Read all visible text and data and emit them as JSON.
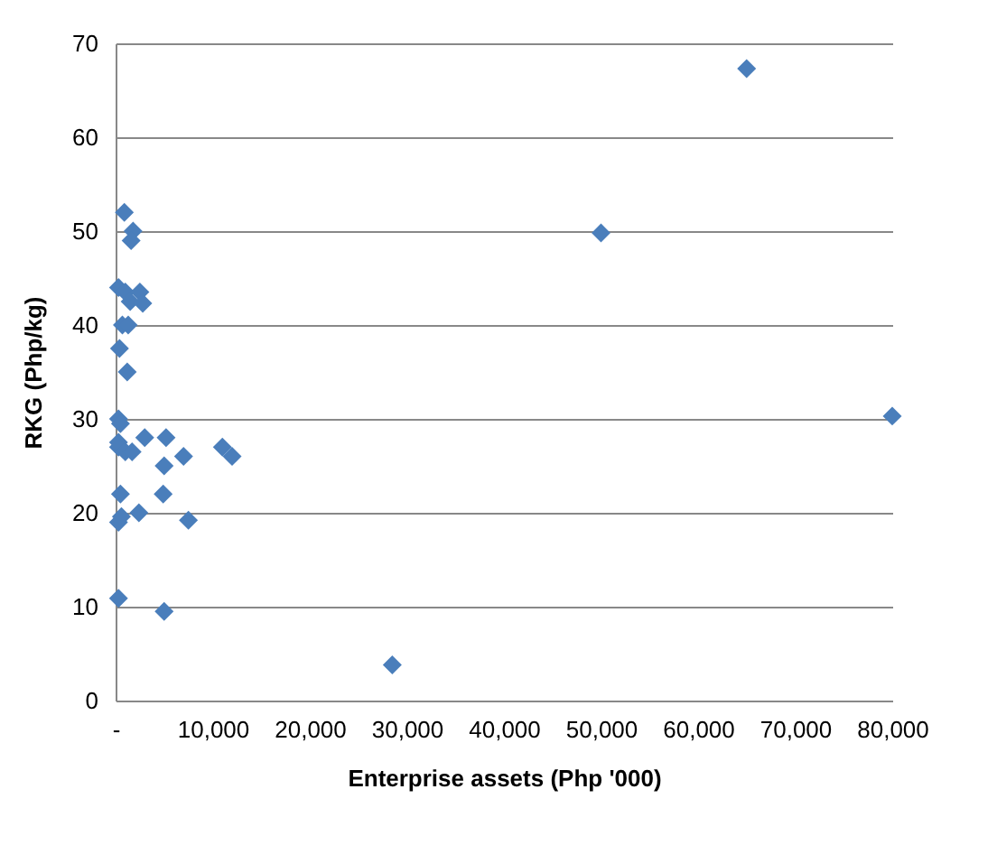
{
  "chart_data": {
    "type": "scatter",
    "xlabel": "Enterprise assets (Php '000)",
    "ylabel": "RKG (Php/kg)",
    "marker": "diamond",
    "grid": "y",
    "series": [
      {
        "color": "#4a7ebb",
        "x": [
          300,
          5000,
          28500,
          50000,
          65000,
          80000,
          900,
          1800,
          1600,
          300,
          1000,
          1500,
          2500,
          2800,
          700,
          1300,
          400,
          1200,
          300,
          500,
          300,
          300,
          1000,
          1700,
          3000,
          5000,
          5200,
          7000,
          11000,
          12000,
          500,
          4900,
          300,
          600,
          2400,
          7500
        ],
        "values": [
          10.9,
          9.5,
          3.8,
          49.8,
          67.3,
          30.3,
          52,
          50,
          49,
          44,
          43.5,
          42.5,
          43.5,
          42.3,
          40,
          40,
          37.5,
          35,
          30,
          29.5,
          27.5,
          27,
          26.5,
          26.5,
          28,
          25,
          28,
          26,
          27,
          26,
          22,
          22,
          19,
          19.6,
          20,
          19.2
        ]
      }
    ],
    "xlim": [
      0,
      80000
    ],
    "xticks": [
      {
        "value": 0,
        "label": "-"
      },
      {
        "value": 10000,
        "label": "10,000"
      },
      {
        "value": 20000,
        "label": "20,000"
      },
      {
        "value": 30000,
        "label": "30,000"
      },
      {
        "value": 40000,
        "label": "40,000"
      },
      {
        "value": 50000,
        "label": "50,000"
      },
      {
        "value": 60000,
        "label": "60,000"
      },
      {
        "value": 70000,
        "label": "70,000"
      },
      {
        "value": 80000,
        "label": "80,000"
      }
    ],
    "ylim": [
      0,
      70
    ],
    "yticks": [
      0,
      10,
      20,
      30,
      40,
      50,
      60,
      70
    ]
  }
}
